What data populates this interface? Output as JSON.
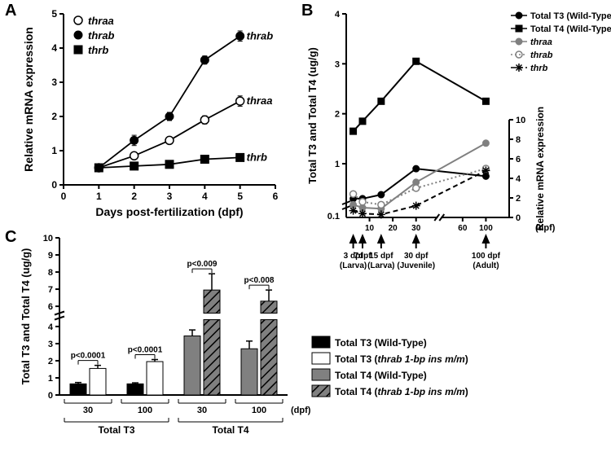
{
  "panelA": {
    "label": "A",
    "type": "line",
    "x": [
      1,
      2,
      3,
      4,
      5
    ],
    "xlim": [
      0,
      6
    ],
    "ylim": [
      0,
      5
    ],
    "ytick_step": 1,
    "xtick_step": 1,
    "xlabel": "Days post-fertilization (dpf)",
    "ylabel": "Relative mRNA expression",
    "label_fontsize": 14,
    "tick_fontsize": 12,
    "background_color": "#ffffff",
    "axis_color": "#000000",
    "series": {
      "thraa": {
        "label": "thraa",
        "marker": "open-circle",
        "color": "#000000",
        "values": [
          0.5,
          0.85,
          1.3,
          1.9,
          2.45
        ],
        "err": [
          0.05,
          0.08,
          0.1,
          0.12,
          0.15
        ]
      },
      "thrab": {
        "label": "thrab",
        "marker": "filled-circle",
        "color": "#000000",
        "values": [
          0.5,
          1.3,
          2.0,
          3.65,
          4.35
        ],
        "err": [
          0.05,
          0.15,
          0.12,
          0.12,
          0.15
        ]
      },
      "thrb": {
        "label": "thrb",
        "marker": "filled-square",
        "color": "#000000",
        "values": [
          0.5,
          0.55,
          0.6,
          0.75,
          0.8
        ],
        "err": [
          0.04,
          0.05,
          0.05,
          0.05,
          0.06
        ]
      }
    },
    "legend_items": [
      "thraa",
      "thrab",
      "thrb"
    ],
    "line_labels": {
      "thrab": "thrab",
      "thraa": "thraa",
      "thrb": "thrb"
    },
    "legend_font_italic": true
  },
  "panelB": {
    "label": "B",
    "type": "dual-axis-line",
    "x_dpf": [
      3,
      7,
      15,
      30,
      100
    ],
    "x_plot": [
      3,
      7,
      15,
      30,
      60
    ],
    "xlim": [
      0,
      70
    ],
    "xbreak": [
      35,
      55
    ],
    "left_ylabel": "Total T3 and Total T4 (ug/g)",
    "left_ylim": [
      0.1,
      4
    ],
    "left_axis_break": [
      0.15,
      0.25
    ],
    "left_ticks": [
      1,
      2,
      3,
      4
    ],
    "right_ylabel": "Relative mRNA expression",
    "right_ylim": [
      0,
      10
    ],
    "right_ticks": [
      0,
      2,
      4,
      6,
      8,
      10
    ],
    "tick_fontsize": 11,
    "label_fontsize": 13,
    "series_left": {
      "T3": {
        "label": "Total T3 (Wild-Type)",
        "marker": "filled-circle",
        "color": "#000000",
        "values": [
          0.3,
          0.3,
          0.38,
          0.9,
          0.75
        ]
      },
      "T4": {
        "label": "Total T4 (Wild-Type)",
        "marker": "filled-square",
        "color": "#000000",
        "values": [
          1.65,
          1.85,
          2.25,
          3.05,
          2.25
        ]
      }
    },
    "series_right": {
      "thraa": {
        "label": "thraa",
        "marker": "filled-circle",
        "color": "#808080",
        "line": "solid",
        "values": [
          1.3,
          1.0,
          0.9,
          3.6,
          7.6
        ]
      },
      "thrab": {
        "label": "thrab",
        "marker": "open-circle",
        "color": "#808080",
        "line": "dotted",
        "values": [
          2.4,
          1.6,
          1.3,
          3.0,
          5.0
        ]
      },
      "thrb": {
        "label": "thrb",
        "marker": "asterisk",
        "color": "#000000",
        "line": "dashed",
        "values": [
          0.7,
          0.4,
          0.3,
          1.2,
          4.8
        ]
      }
    },
    "bottom_ticks": [
      10,
      20,
      30,
      60,
      100
    ],
    "bottom_tick_labels": [
      "10",
      "20",
      "30",
      "60",
      "100"
    ],
    "bottom_tail_label": "(dpf)",
    "stage_annotations": [
      {
        "text_top": "3 dpf",
        "text_bot": "(Larva)",
        "dpf": 3
      },
      {
        "text_top": "7dpf",
        "text_bot": "",
        "dpf": 7
      },
      {
        "text_top": "15 dpf",
        "text_bot": "(Larva)",
        "dpf": 15
      },
      {
        "text_top": "30 dpf",
        "text_bot": "(Juvenile)",
        "dpf": 30
      },
      {
        "text_top": "100 dpf",
        "text_bot": "(Adult)",
        "dpf": 100
      }
    ]
  },
  "panelC": {
    "label": "C",
    "type": "bar",
    "ylabel": "Total T3 and Total T4 (ug/g)",
    "ylim": [
      0,
      10
    ],
    "ybreak": [
      4.4,
      5.6
    ],
    "yticks_low": [
      0,
      1,
      2,
      3,
      4
    ],
    "yticks_high": [
      6,
      7,
      8,
      9,
      10
    ],
    "tick_fontsize": 11,
    "label_fontsize": 13,
    "group_labels": [
      "Total T3",
      "Total T4"
    ],
    "sub_labels": [
      "30",
      "100"
    ],
    "sub_unit": "(dpf)",
    "bars": [
      {
        "group": "Total T3",
        "sub": "30",
        "type": "WT",
        "value": 0.65,
        "err": 0.08,
        "fill": "#000000",
        "pattern": "none",
        "p": "p<0.0001"
      },
      {
        "group": "Total T3",
        "sub": "30",
        "type": "mut",
        "value": 1.55,
        "err": 0.18,
        "fill": "#ffffff",
        "pattern": "none"
      },
      {
        "group": "Total T3",
        "sub": "100",
        "type": "WT",
        "value": 0.65,
        "err": 0.06,
        "fill": "#000000",
        "pattern": "none",
        "p": "p<0.0001"
      },
      {
        "group": "Total T3",
        "sub": "100",
        "type": "mut",
        "value": 1.95,
        "err": 0.12,
        "fill": "#ffffff",
        "pattern": "none"
      },
      {
        "group": "Total T4",
        "sub": "30",
        "type": "WT",
        "value": 3.45,
        "err": 0.35,
        "fill": "#808080",
        "pattern": "none",
        "p": "p<0.009"
      },
      {
        "group": "Total T4",
        "sub": "30",
        "type": "mut",
        "value": 6.95,
        "err": 0.95,
        "fill": "#808080",
        "pattern": "hatch"
      },
      {
        "group": "Total T4",
        "sub": "100",
        "type": "WT",
        "value": 2.7,
        "err": 0.45,
        "fill": "#808080",
        "pattern": "none",
        "p": "p<0.008"
      },
      {
        "group": "Total T4",
        "sub": "100",
        "type": "mut",
        "value": 6.3,
        "err": 0.65,
        "fill": "#808080",
        "pattern": "hatch"
      }
    ],
    "legend": [
      {
        "label": "Total T3 (Wild-Type)",
        "fill": "#000000",
        "pattern": "none"
      },
      {
        "label": "Total T3 (thrab 1-bp ins m/m)",
        "fill": "#ffffff",
        "pattern": "none",
        "italic_part": "thrab 1-bp ins m/m"
      },
      {
        "label": "Total T4 (Wild-Type)",
        "fill": "#808080",
        "pattern": "none"
      },
      {
        "label": "Total T4 (thrab 1-bp ins m/m)",
        "fill": "#808080",
        "pattern": "hatch",
        "italic_part": "thrab 1-bp ins m/m"
      }
    ]
  }
}
